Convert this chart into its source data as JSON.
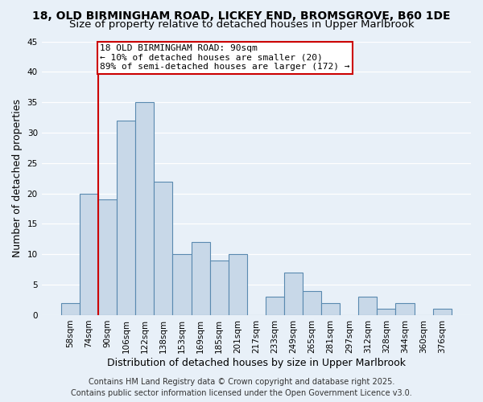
{
  "title": "18, OLD BIRMINGHAM ROAD, LICKEY END, BROMSGROVE, B60 1DE",
  "subtitle": "Size of property relative to detached houses in Upper Marlbrook",
  "xlabel": "Distribution of detached houses by size in Upper Marlbrook",
  "ylabel": "Number of detached properties",
  "bins": [
    "58sqm",
    "74sqm",
    "90sqm",
    "106sqm",
    "122sqm",
    "138sqm",
    "153sqm",
    "169sqm",
    "185sqm",
    "201sqm",
    "217sqm",
    "233sqm",
    "249sqm",
    "265sqm",
    "281sqm",
    "297sqm",
    "312sqm",
    "328sqm",
    "344sqm",
    "360sqm",
    "376sqm"
  ],
  "values": [
    2,
    20,
    19,
    32,
    35,
    22,
    10,
    12,
    9,
    10,
    0,
    3,
    7,
    4,
    2,
    0,
    3,
    1,
    2,
    0,
    1
  ],
  "bar_color": "#c8d8e8",
  "bar_edge_color": "#5a8ab0",
  "highlight_line_color": "#cc0000",
  "annotation_line1": "18 OLD BIRMINGHAM ROAD: 90sqm",
  "annotation_line2": "← 10% of detached houses are smaller (20)",
  "annotation_line3": "89% of semi-detached houses are larger (172) →",
  "annotation_box_color": "#ffffff",
  "annotation_box_edge_color": "#cc0000",
  "ylim": [
    0,
    45
  ],
  "yticks": [
    0,
    5,
    10,
    15,
    20,
    25,
    30,
    35,
    40,
    45
  ],
  "background_color": "#e8f0f8",
  "footer1": "Contains HM Land Registry data © Crown copyright and database right 2025.",
  "footer2": "Contains public sector information licensed under the Open Government Licence v3.0.",
  "title_fontsize": 10,
  "subtitle_fontsize": 9.5,
  "axis_label_fontsize": 9,
  "tick_fontsize": 7.5,
  "annotation_fontsize": 8,
  "footer_fontsize": 7
}
